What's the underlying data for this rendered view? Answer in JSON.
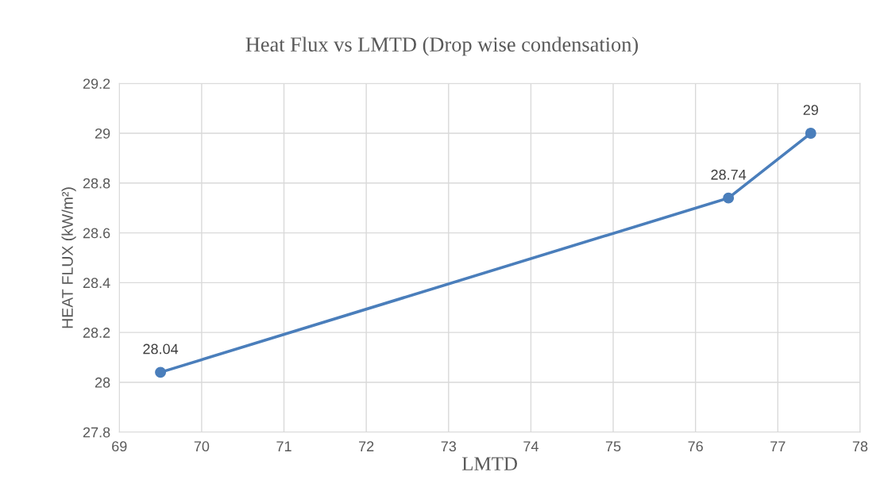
{
  "chart_data": {
    "type": "line",
    "title": "Heat Flux vs LMTD (Drop wise condensation)",
    "xlabel": "LMTD",
    "ylabel": "HEAT FLUX (kW/m²)",
    "x": [
      69.5,
      76.4,
      77.4
    ],
    "series": [
      {
        "color": "#4a7ebb",
        "values": [
          28.04,
          28.74,
          29
        ]
      }
    ],
    "xlim": [
      69,
      78
    ],
    "xticks": [
      69,
      70,
      71,
      72,
      73,
      74,
      75,
      76,
      77,
      78
    ],
    "ylim": [
      27.8,
      29.2
    ],
    "yticks": [
      27.8,
      28,
      28.2,
      28.4,
      28.6,
      28.8,
      29,
      29.2
    ],
    "grid": true,
    "marker": "circle",
    "line_style": "solid",
    "data_labels": true
  }
}
